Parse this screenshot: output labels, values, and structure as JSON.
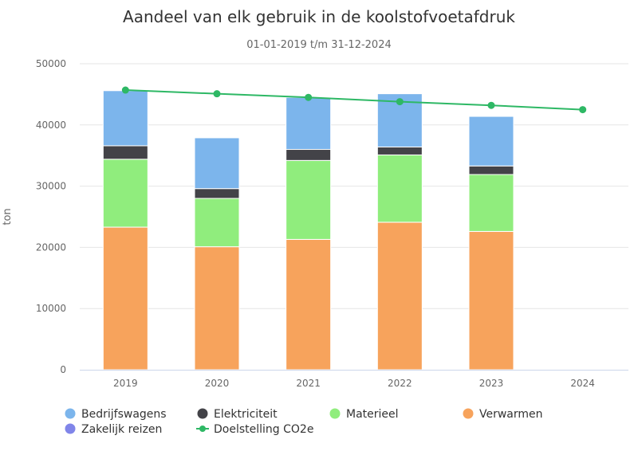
{
  "chart_data": {
    "type": "bar",
    "title": "Aandeel van elk gebruik in de koolstofvoetafdruk",
    "subtitle": "01-01-2019 t/m 31-12-2024",
    "xlabel": "",
    "ylabel": "ton",
    "ylim": [
      0,
      50000
    ],
    "yticks": [
      "0",
      "10000",
      "20000",
      "30000",
      "40000",
      "50000"
    ],
    "categories": [
      "2019",
      "2020",
      "2021",
      "2022",
      "2023",
      "2024"
    ],
    "stacked": true,
    "grid": true,
    "legend_position": "bottom",
    "series": [
      {
        "name": "Verwarmen",
        "color": "#f7a35c",
        "values": [
          23300,
          20100,
          21300,
          24100,
          22600,
          0
        ]
      },
      {
        "name": "Materieel",
        "color": "#90ed7d",
        "values": [
          11100,
          7900,
          12900,
          11000,
          9300,
          0
        ]
      },
      {
        "name": "Elektriciteit",
        "color": "#434348",
        "values": [
          2200,
          1600,
          1800,
          1300,
          1400,
          0
        ]
      },
      {
        "name": "Bedrijfswagens",
        "color": "#7cb5ec",
        "values": [
          9000,
          8300,
          8500,
          8700,
          8100,
          0
        ]
      },
      {
        "name": "Zakelijk reizen",
        "color": "#8085e9",
        "values": [
          0,
          0,
          0,
          0,
          0,
          0
        ]
      }
    ],
    "line_series": {
      "name": "Doelstelling CO2e",
      "color": "#2eb865",
      "values": [
        45700,
        45100,
        44500,
        43800,
        43200,
        42500
      ]
    },
    "legend": [
      {
        "name": "Bedrijfswagens",
        "color": "#7cb5ec",
        "kind": "dot"
      },
      {
        "name": "Elektriciteit",
        "color": "#434348",
        "kind": "dot"
      },
      {
        "name": "Materieel",
        "color": "#90ed7d",
        "kind": "dot"
      },
      {
        "name": "Verwarmen",
        "color": "#f7a35c",
        "kind": "dot"
      },
      {
        "name": "Zakelijk reizen",
        "color": "#8085e9",
        "kind": "dot"
      },
      {
        "name": "Doelstelling CO2e",
        "color": "#2eb865",
        "kind": "line"
      }
    ]
  }
}
